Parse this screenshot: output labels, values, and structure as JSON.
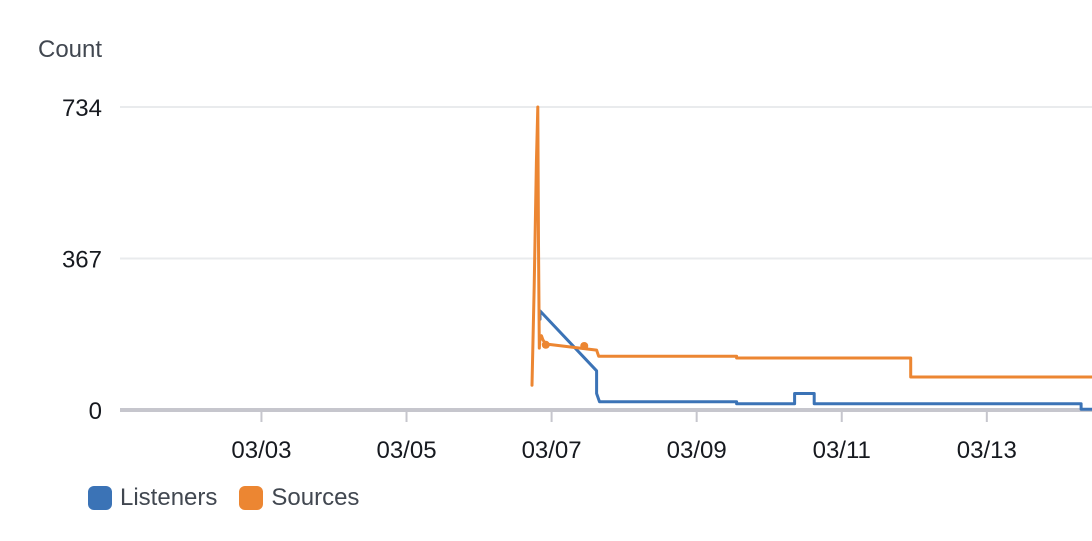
{
  "chart_data": {
    "type": "line",
    "title": "",
    "ylabel": "Count",
    "xlabel": "",
    "ylim": [
      0,
      734
    ],
    "yticks": [
      "0",
      "367",
      "734"
    ],
    "xticks": [
      "03/03",
      "03/05",
      "03/07",
      "03/09",
      "03/11",
      "03/13"
    ],
    "x_tick_values": [
      3.0,
      5.0,
      7.0,
      9.0,
      11.0,
      13.0
    ],
    "xlim": [
      1.05,
      14.45
    ],
    "grid": true,
    "legend_position": "bottom-left",
    "series": [
      {
        "name": "Listeners",
        "color": "#3b73b6",
        "points": [
          [
            6.84,
            220
          ],
          [
            6.84,
            240
          ],
          [
            7.62,
            95
          ],
          [
            7.62,
            40
          ],
          [
            7.66,
            20
          ],
          [
            9.55,
            20
          ],
          [
            9.55,
            15
          ],
          [
            10.35,
            15
          ],
          [
            10.35,
            40
          ],
          [
            10.62,
            40
          ],
          [
            10.62,
            15
          ],
          [
            14.3,
            15
          ],
          [
            14.3,
            2
          ],
          [
            14.45,
            2
          ]
        ]
      },
      {
        "name": "Sources",
        "color": "#ec8632",
        "points": [
          [
            6.73,
            60
          ],
          [
            6.76,
            300
          ],
          [
            6.79,
            600
          ],
          [
            6.81,
            734
          ],
          [
            6.82,
            400
          ],
          [
            6.83,
            150
          ],
          [
            6.84,
            175
          ],
          [
            6.86,
            180
          ],
          [
            6.88,
            170
          ],
          [
            6.9,
            165
          ],
          [
            6.92,
            160
          ],
          [
            7.62,
            145
          ],
          [
            7.65,
            130
          ],
          [
            9.55,
            130
          ],
          [
            9.55,
            126
          ],
          [
            11.95,
            126
          ],
          [
            11.95,
            80
          ],
          [
            14.45,
            80
          ]
        ],
        "isolated_points": [
          [
            6.92,
            158
          ],
          [
            7.45,
            155
          ]
        ]
      }
    ]
  }
}
